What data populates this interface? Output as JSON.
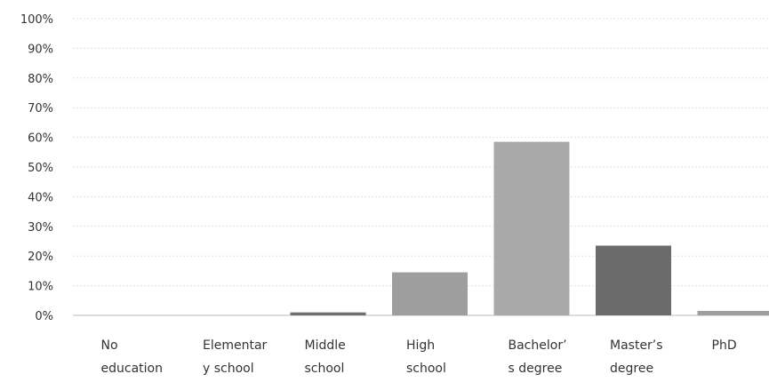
{
  "chart_data": {
    "type": "bar",
    "categories": [
      [
        "No",
        "education"
      ],
      [
        "Elementar",
        "y school"
      ],
      [
        "Middle",
        "school"
      ],
      [
        "High",
        "school"
      ],
      [
        "Bachelor’",
        "s degree"
      ],
      [
        "Master’s",
        "degree"
      ],
      [
        "PhD"
      ]
    ],
    "values": [
      0,
      0,
      1,
      14.5,
      58.5,
      23.5,
      1.5
    ],
    "bar_colors": [
      "#9e9e9e",
      "#9e9e9e",
      "#6e6e6e",
      "#9e9e9e",
      "#a9a9a9",
      "#6b6b6b",
      "#9e9e9e"
    ],
    "y_ticks": [
      "0%",
      "10%",
      "20%",
      "30%",
      "40%",
      "50%",
      "60%",
      "70%",
      "80%",
      "90%",
      "100%"
    ],
    "ylim": [
      0,
      100
    ],
    "grid": true,
    "title": "",
    "xlabel": "",
    "ylabel": ""
  }
}
